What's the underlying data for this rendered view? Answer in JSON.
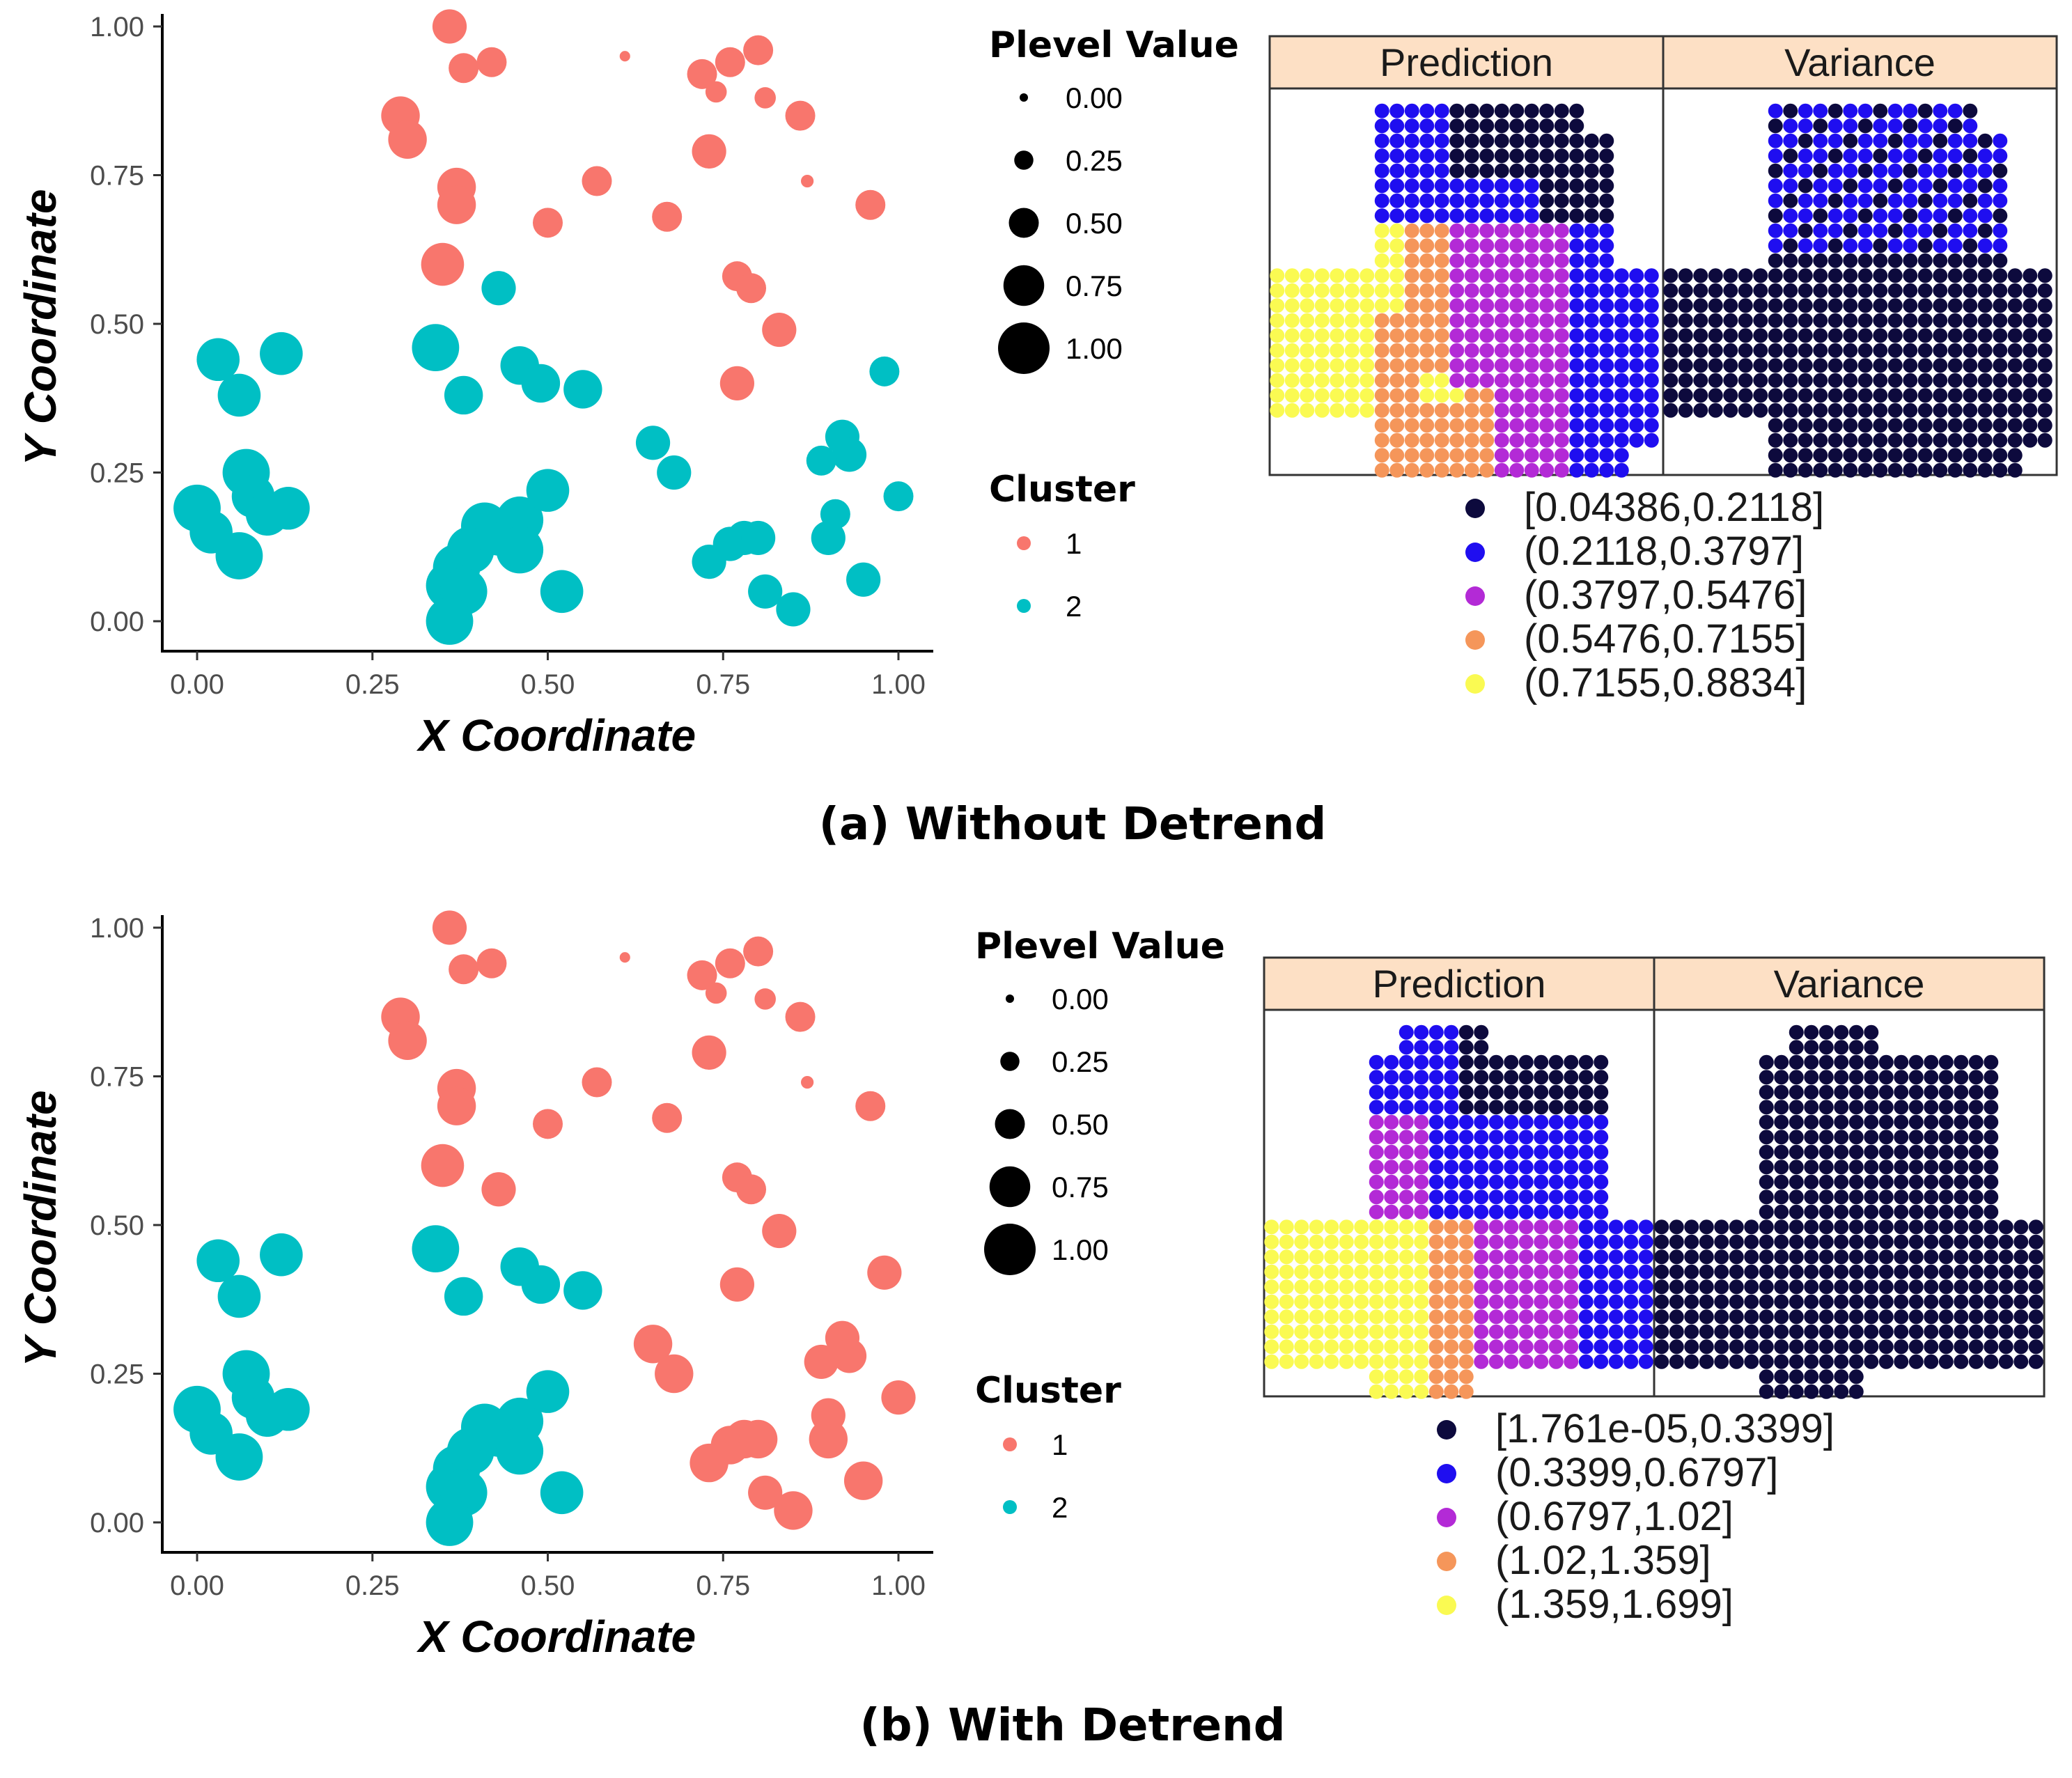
{
  "chart_data": [
    {
      "id": "a",
      "type": "scatter",
      "caption": "(a) Without Detrend",
      "xlabel": "X Coordinate",
      "ylabel": "Y Coordinate",
      "xlim": [
        0,
        1
      ],
      "ylim": [
        0,
        1
      ],
      "xticks": [
        "0.00",
        "0.25",
        "0.50",
        "0.75",
        "1.00"
      ],
      "yticks": [
        "0.00",
        "0.25",
        "0.50",
        "0.75",
        "1.00"
      ],
      "size_legend": {
        "title": "Plevel Value",
        "labels": [
          "0.00",
          "0.25",
          "0.50",
          "0.75",
          "1.00"
        ]
      },
      "color_legend": {
        "title": "Cluster",
        "labels": [
          "1",
          "2"
        ],
        "colors": [
          "#f8766d",
          "#00bfc4"
        ]
      },
      "points": [
        [
          0.36,
          1.0,
          0.6,
          1
        ],
        [
          0.38,
          0.93,
          0.5,
          1
        ],
        [
          0.42,
          0.94,
          0.5,
          1
        ],
        [
          0.61,
          0.95,
          0.05,
          1
        ],
        [
          0.72,
          0.92,
          0.5,
          1
        ],
        [
          0.76,
          0.94,
          0.5,
          1
        ],
        [
          0.8,
          0.96,
          0.5,
          1
        ],
        [
          0.74,
          0.89,
          0.3,
          1
        ],
        [
          0.81,
          0.88,
          0.3,
          1
        ],
        [
          0.86,
          0.85,
          0.5,
          1
        ],
        [
          0.29,
          0.85,
          0.7,
          1
        ],
        [
          0.3,
          0.81,
          0.7,
          1
        ],
        [
          0.37,
          0.73,
          0.7,
          1
        ],
        [
          0.37,
          0.7,
          0.7,
          1
        ],
        [
          0.57,
          0.74,
          0.5,
          1
        ],
        [
          0.87,
          0.74,
          0.1,
          1
        ],
        [
          0.73,
          0.79,
          0.6,
          1
        ],
        [
          0.96,
          0.7,
          0.5,
          1
        ],
        [
          0.5,
          0.67,
          0.5,
          1
        ],
        [
          0.67,
          0.68,
          0.5,
          1
        ],
        [
          0.35,
          0.6,
          0.8,
          1
        ],
        [
          0.77,
          0.58,
          0.5,
          1
        ],
        [
          0.79,
          0.56,
          0.5,
          1
        ],
        [
          0.83,
          0.49,
          0.6,
          1
        ],
        [
          0.77,
          0.4,
          0.6,
          1
        ],
        [
          0.43,
          0.56,
          0.6,
          2
        ],
        [
          0.34,
          0.46,
          0.9,
          2
        ],
        [
          0.38,
          0.38,
          0.7,
          2
        ],
        [
          0.46,
          0.43,
          0.7,
          2
        ],
        [
          0.49,
          0.4,
          0.7,
          2
        ],
        [
          0.55,
          0.39,
          0.7,
          2
        ],
        [
          0.03,
          0.44,
          0.8,
          2
        ],
        [
          0.12,
          0.45,
          0.8,
          2
        ],
        [
          0.06,
          0.38,
          0.8,
          2
        ],
        [
          0.65,
          0.3,
          0.6,
          2
        ],
        [
          0.68,
          0.25,
          0.6,
          2
        ],
        [
          0.98,
          0.42,
          0.5,
          2
        ],
        [
          0.92,
          0.31,
          0.6,
          2
        ],
        [
          0.93,
          0.28,
          0.6,
          2
        ],
        [
          0.89,
          0.27,
          0.5,
          2
        ],
        [
          1.0,
          0.21,
          0.5,
          2
        ],
        [
          0.91,
          0.18,
          0.5,
          2
        ],
        [
          0.9,
          0.14,
          0.6,
          2
        ],
        [
          0.95,
          0.07,
          0.6,
          2
        ],
        [
          0.0,
          0.19,
          0.9,
          2
        ],
        [
          0.02,
          0.15,
          0.8,
          2
        ],
        [
          0.06,
          0.11,
          0.9,
          2
        ],
        [
          0.07,
          0.25,
          0.9,
          2
        ],
        [
          0.08,
          0.21,
          0.8,
          2
        ],
        [
          0.1,
          0.18,
          0.8,
          2
        ],
        [
          0.13,
          0.19,
          0.8,
          2
        ],
        [
          0.37,
          0.09,
          0.9,
          2
        ],
        [
          0.39,
          0.12,
          0.9,
          2
        ],
        [
          0.41,
          0.16,
          0.9,
          2
        ],
        [
          0.43,
          0.15,
          0.9,
          2
        ],
        [
          0.46,
          0.17,
          0.9,
          2
        ],
        [
          0.46,
          0.12,
          0.9,
          2
        ],
        [
          0.5,
          0.22,
          0.8,
          2
        ],
        [
          0.36,
          0.06,
          0.9,
          2
        ],
        [
          0.38,
          0.05,
          0.9,
          2
        ],
        [
          0.36,
          0.0,
          0.9,
          2
        ],
        [
          0.52,
          0.05,
          0.8,
          2
        ],
        [
          0.73,
          0.1,
          0.6,
          2
        ],
        [
          0.76,
          0.13,
          0.6,
          2
        ],
        [
          0.78,
          0.14,
          0.6,
          2
        ],
        [
          0.8,
          0.14,
          0.6,
          2
        ],
        [
          0.81,
          0.05,
          0.6,
          2
        ],
        [
          0.85,
          0.02,
          0.6,
          2
        ]
      ]
    },
    {
      "id": "b",
      "type": "scatter",
      "caption": "(b) With Detrend",
      "xlabel": "X Coordinate",
      "ylabel": "Y Coordinate",
      "xlim": [
        0,
        1
      ],
      "ylim": [
        0,
        1
      ],
      "xticks": [
        "0.00",
        "0.25",
        "0.50",
        "0.75",
        "1.00"
      ],
      "yticks": [
        "0.00",
        "0.25",
        "0.50",
        "0.75",
        "1.00"
      ],
      "size_legend": {
        "title": "Plevel Value",
        "labels": [
          "0.00",
          "0.25",
          "0.50",
          "0.75",
          "1.00"
        ]
      },
      "color_legend": {
        "title": "Cluster",
        "labels": [
          "1",
          "2"
        ],
        "colors": [
          "#f8766d",
          "#00bfc4"
        ]
      },
      "points": [
        [
          0.36,
          1.0,
          0.6,
          1
        ],
        [
          0.38,
          0.93,
          0.5,
          1
        ],
        [
          0.42,
          0.94,
          0.5,
          1
        ],
        [
          0.61,
          0.95,
          0.05,
          1
        ],
        [
          0.72,
          0.92,
          0.5,
          1
        ],
        [
          0.76,
          0.94,
          0.5,
          1
        ],
        [
          0.8,
          0.96,
          0.5,
          1
        ],
        [
          0.74,
          0.89,
          0.3,
          1
        ],
        [
          0.81,
          0.88,
          0.3,
          1
        ],
        [
          0.86,
          0.85,
          0.5,
          1
        ],
        [
          0.29,
          0.85,
          0.7,
          1
        ],
        [
          0.3,
          0.81,
          0.7,
          1
        ],
        [
          0.37,
          0.73,
          0.7,
          1
        ],
        [
          0.37,
          0.7,
          0.7,
          1
        ],
        [
          0.57,
          0.74,
          0.5,
          1
        ],
        [
          0.87,
          0.74,
          0.1,
          1
        ],
        [
          0.73,
          0.79,
          0.6,
          1
        ],
        [
          0.96,
          0.7,
          0.5,
          1
        ],
        [
          0.5,
          0.67,
          0.5,
          1
        ],
        [
          0.67,
          0.68,
          0.5,
          1
        ],
        [
          0.35,
          0.6,
          0.8,
          1
        ],
        [
          0.43,
          0.56,
          0.6,
          1
        ],
        [
          0.77,
          0.58,
          0.5,
          1
        ],
        [
          0.79,
          0.56,
          0.5,
          1
        ],
        [
          0.83,
          0.49,
          0.6,
          1
        ],
        [
          0.77,
          0.4,
          0.6,
          1
        ],
        [
          0.98,
          0.42,
          0.6,
          1
        ],
        [
          0.65,
          0.3,
          0.7,
          1
        ],
        [
          0.68,
          0.25,
          0.7,
          1
        ],
        [
          0.92,
          0.31,
          0.6,
          1
        ],
        [
          0.93,
          0.28,
          0.6,
          1
        ],
        [
          0.89,
          0.27,
          0.6,
          1
        ],
        [
          1.0,
          0.21,
          0.6,
          1
        ],
        [
          0.9,
          0.18,
          0.6,
          1
        ],
        [
          0.9,
          0.14,
          0.7,
          1
        ],
        [
          0.95,
          0.07,
          0.7,
          1
        ],
        [
          0.73,
          0.1,
          0.7,
          1
        ],
        [
          0.76,
          0.13,
          0.7,
          1
        ],
        [
          0.78,
          0.14,
          0.7,
          1
        ],
        [
          0.8,
          0.14,
          0.7,
          1
        ],
        [
          0.81,
          0.05,
          0.6,
          1
        ],
        [
          0.85,
          0.02,
          0.7,
          1
        ],
        [
          0.34,
          0.46,
          0.9,
          2
        ],
        [
          0.38,
          0.38,
          0.7,
          2
        ],
        [
          0.46,
          0.43,
          0.7,
          2
        ],
        [
          0.49,
          0.4,
          0.7,
          2
        ],
        [
          0.55,
          0.39,
          0.7,
          2
        ],
        [
          0.03,
          0.44,
          0.8,
          2
        ],
        [
          0.12,
          0.45,
          0.8,
          2
        ],
        [
          0.06,
          0.38,
          0.8,
          2
        ],
        [
          0.0,
          0.19,
          0.9,
          2
        ],
        [
          0.02,
          0.15,
          0.8,
          2
        ],
        [
          0.06,
          0.11,
          0.9,
          2
        ],
        [
          0.07,
          0.25,
          0.9,
          2
        ],
        [
          0.08,
          0.21,
          0.8,
          2
        ],
        [
          0.1,
          0.18,
          0.8,
          2
        ],
        [
          0.13,
          0.19,
          0.8,
          2
        ],
        [
          0.37,
          0.09,
          0.9,
          2
        ],
        [
          0.39,
          0.12,
          0.9,
          2
        ],
        [
          0.41,
          0.16,
          0.9,
          2
        ],
        [
          0.43,
          0.15,
          0.9,
          2
        ],
        [
          0.46,
          0.17,
          0.9,
          2
        ],
        [
          0.46,
          0.12,
          0.9,
          2
        ],
        [
          0.5,
          0.22,
          0.8,
          2
        ],
        [
          0.36,
          0.06,
          0.9,
          2
        ],
        [
          0.38,
          0.05,
          0.9,
          2
        ],
        [
          0.36,
          0.0,
          0.9,
          2
        ],
        [
          0.52,
          0.05,
          0.8,
          2
        ]
      ]
    },
    {
      "id": "a-map",
      "type": "heatmap",
      "panels": [
        "Prediction",
        "Variance"
      ],
      "strip_fill": "#fde0c5",
      "bins": [
        {
          "label": "[0.04386,0.2118]",
          "color": "#0d0a3d"
        },
        {
          "label": "(0.2118,0.3797]",
          "color": "#1f0ef0"
        },
        {
          "label": "(0.3797,0.5476]",
          "color": "#b32ad6"
        },
        {
          "label": "(0.5476,0.7155]",
          "color": "#f5965a"
        },
        {
          "label": "(0.7155,0.8834]",
          "color": "#fafa52"
        }
      ]
    },
    {
      "id": "b-map",
      "type": "heatmap",
      "panels": [
        "Prediction",
        "Variance"
      ],
      "strip_fill": "#fde0c5",
      "bins": [
        {
          "label": "[1.761e-05,0.3399]",
          "color": "#0d0a3d"
        },
        {
          "label": "(0.3399,0.6797]",
          "color": "#1f0ef0"
        },
        {
          "label": "(0.6797,1.02]",
          "color": "#b32ad6"
        },
        {
          "label": "(1.02,1.359]",
          "color": "#f5965a"
        },
        {
          "label": "(1.359,1.699]",
          "color": "#fafa52"
        }
      ]
    }
  ]
}
